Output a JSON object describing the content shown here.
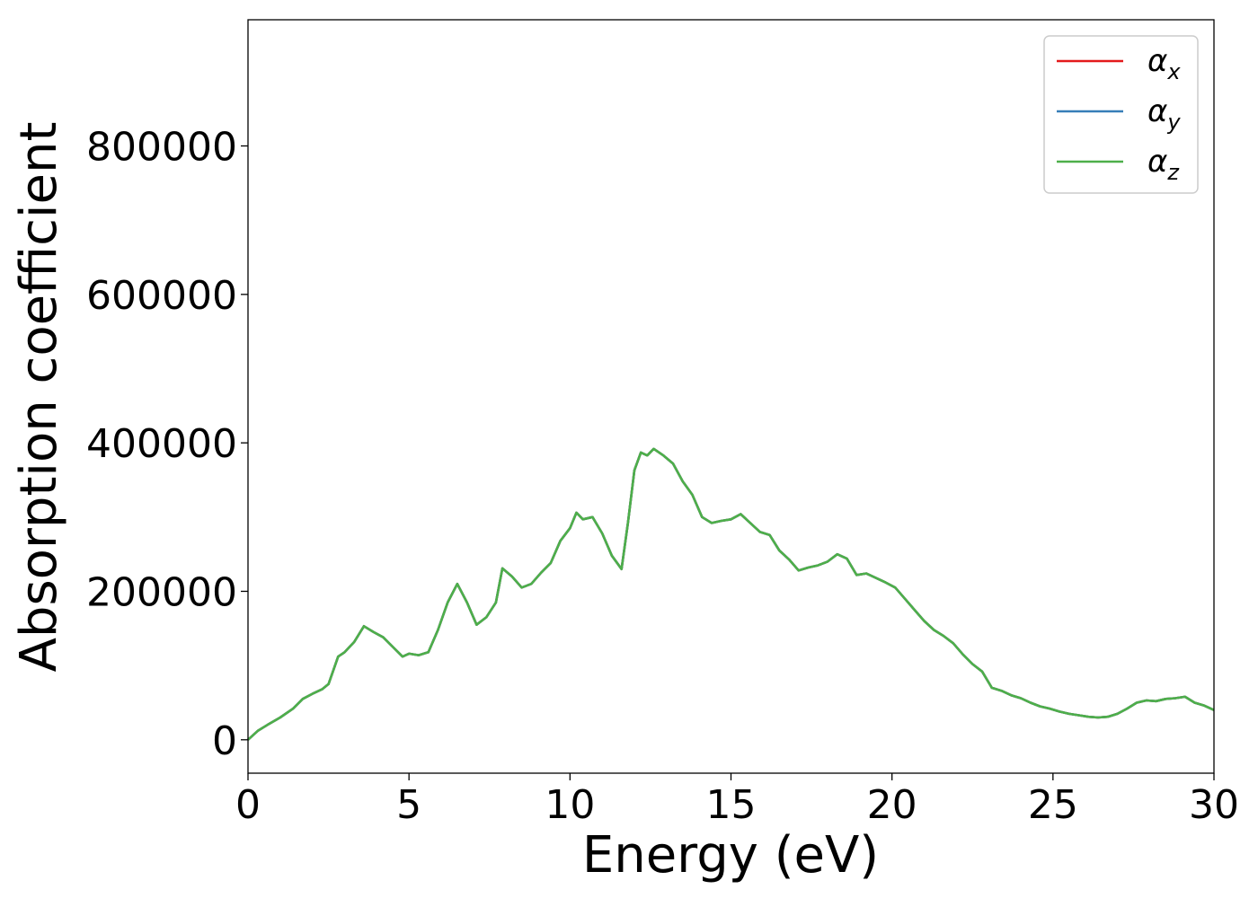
{
  "chart_data": {
    "type": "line",
    "xlabel": "Energy (eV)",
    "ylabel": "Absorption coefficient",
    "xlim": [
      0,
      30
    ],
    "ylim": [
      -45000,
      970000
    ],
    "xticks": [
      0,
      5,
      10,
      15,
      20,
      25,
      30
    ],
    "xtick_labels": [
      "0",
      "5",
      "10",
      "15",
      "20",
      "25",
      "30"
    ],
    "yticks": [
      0,
      200000,
      400000,
      600000,
      800000
    ],
    "ytick_labels": [
      "0",
      "200000",
      "400000",
      "600000",
      "800000"
    ],
    "grid": false,
    "legend_position": "top-right",
    "x": [
      0,
      0.3,
      0.6,
      1.0,
      1.4,
      1.7,
      2.0,
      2.3,
      2.5,
      2.8,
      3.0,
      3.3,
      3.6,
      3.9,
      4.2,
      4.5,
      4.8,
      5.0,
      5.3,
      5.6,
      5.9,
      6.2,
      6.5,
      6.8,
      7.1,
      7.4,
      7.7,
      7.9,
      8.2,
      8.5,
      8.8,
      9.1,
      9.4,
      9.7,
      10.0,
      10.2,
      10.4,
      10.7,
      11.0,
      11.3,
      11.6,
      11.8,
      12.0,
      12.2,
      12.4,
      12.6,
      12.9,
      13.2,
      13.5,
      13.8,
      14.1,
      14.4,
      14.7,
      15.0,
      15.3,
      15.6,
      15.9,
      16.2,
      16.5,
      16.8,
      17.1,
      17.4,
      17.7,
      18.0,
      18.3,
      18.6,
      18.9,
      19.2,
      19.5,
      19.8,
      20.1,
      20.4,
      20.7,
      21.0,
      21.3,
      21.6,
      21.9,
      22.2,
      22.5,
      22.8,
      23.1,
      23.4,
      23.7,
      24.0,
      24.3,
      24.6,
      24.9,
      25.2,
      25.5,
      25.8,
      26.1,
      26.4,
      26.7,
      27.0,
      27.3,
      27.6,
      27.9,
      28.2,
      28.5,
      28.8,
      29.1,
      29.4,
      29.7,
      30.0
    ],
    "series": [
      {
        "name": "αx",
        "color": "#e41a1c",
        "values": [
          0,
          12000,
          20000,
          30000,
          42000,
          55000,
          62000,
          68000,
          75000,
          112000,
          118000,
          132000,
          153000,
          145000,
          138000,
          125000,
          112000,
          116000,
          114000,
          118000,
          148000,
          185000,
          210000,
          185000,
          155000,
          165000,
          185000,
          231000,
          220000,
          205000,
          210000,
          225000,
          238000,
          268000,
          285000,
          306000,
          297000,
          300000,
          278000,
          248000,
          230000,
          292000,
          363000,
          387000,
          383000,
          392000,
          383000,
          372000,
          348000,
          330000,
          300000,
          292000,
          295000,
          297000,
          304000,
          292000,
          280000,
          276000,
          255000,
          243000,
          228000,
          232000,
          235000,
          240000,
          250000,
          244000,
          222000,
          224000,
          218000,
          212000,
          205000,
          190000,
          175000,
          160000,
          148000,
          140000,
          130000,
          115000,
          102000,
          92000,
          70000,
          66000,
          60000,
          56000,
          50000,
          45000,
          42000,
          38000,
          35000,
          33000,
          31000,
          30000,
          31000,
          35000,
          42000,
          50000,
          53000,
          52000,
          55000,
          56000,
          58000,
          50000,
          46000,
          40000
        ]
      },
      {
        "name": "αy",
        "color": "#377eb8",
        "values": [
          0,
          12000,
          20000,
          30000,
          42000,
          55000,
          62000,
          68000,
          75000,
          112000,
          118000,
          132000,
          153000,
          145000,
          138000,
          125000,
          112000,
          116000,
          114000,
          118000,
          148000,
          185000,
          210000,
          185000,
          155000,
          165000,
          185000,
          231000,
          220000,
          205000,
          210000,
          225000,
          238000,
          268000,
          285000,
          306000,
          297000,
          300000,
          278000,
          248000,
          230000,
          292000,
          363000,
          387000,
          383000,
          392000,
          383000,
          372000,
          348000,
          330000,
          300000,
          292000,
          295000,
          297000,
          304000,
          292000,
          280000,
          276000,
          255000,
          243000,
          228000,
          232000,
          235000,
          240000,
          250000,
          244000,
          222000,
          224000,
          218000,
          212000,
          205000,
          190000,
          175000,
          160000,
          148000,
          140000,
          130000,
          115000,
          102000,
          92000,
          70000,
          66000,
          60000,
          56000,
          50000,
          45000,
          42000,
          38000,
          35000,
          33000,
          31000,
          30000,
          31000,
          35000,
          42000,
          50000,
          53000,
          52000,
          55000,
          56000,
          58000,
          50000,
          46000,
          40000
        ]
      },
      {
        "name": "αz",
        "color": "#4daf4a",
        "values": [
          0,
          12000,
          20000,
          30000,
          42000,
          55000,
          62000,
          68000,
          75000,
          112000,
          118000,
          132000,
          153000,
          145000,
          138000,
          125000,
          112000,
          116000,
          114000,
          118000,
          148000,
          185000,
          210000,
          185000,
          155000,
          165000,
          185000,
          231000,
          220000,
          205000,
          210000,
          225000,
          238000,
          268000,
          285000,
          306000,
          297000,
          300000,
          278000,
          248000,
          230000,
          292000,
          363000,
          387000,
          383000,
          392000,
          383000,
          372000,
          348000,
          330000,
          300000,
          292000,
          295000,
          297000,
          304000,
          292000,
          280000,
          276000,
          255000,
          243000,
          228000,
          232000,
          235000,
          240000,
          250000,
          244000,
          222000,
          224000,
          218000,
          212000,
          205000,
          190000,
          175000,
          160000,
          148000,
          140000,
          130000,
          115000,
          102000,
          92000,
          70000,
          66000,
          60000,
          56000,
          50000,
          45000,
          42000,
          38000,
          35000,
          33000,
          31000,
          30000,
          31000,
          35000,
          42000,
          50000,
          53000,
          52000,
          55000,
          56000,
          58000,
          50000,
          46000,
          40000
        ]
      }
    ],
    "legend": [
      {
        "symbol": "α",
        "sub": "x",
        "color": "#e41a1c"
      },
      {
        "symbol": "α",
        "sub": "y",
        "color": "#377eb8"
      },
      {
        "symbol": "α",
        "sub": "z",
        "color": "#4daf4a"
      }
    ]
  }
}
